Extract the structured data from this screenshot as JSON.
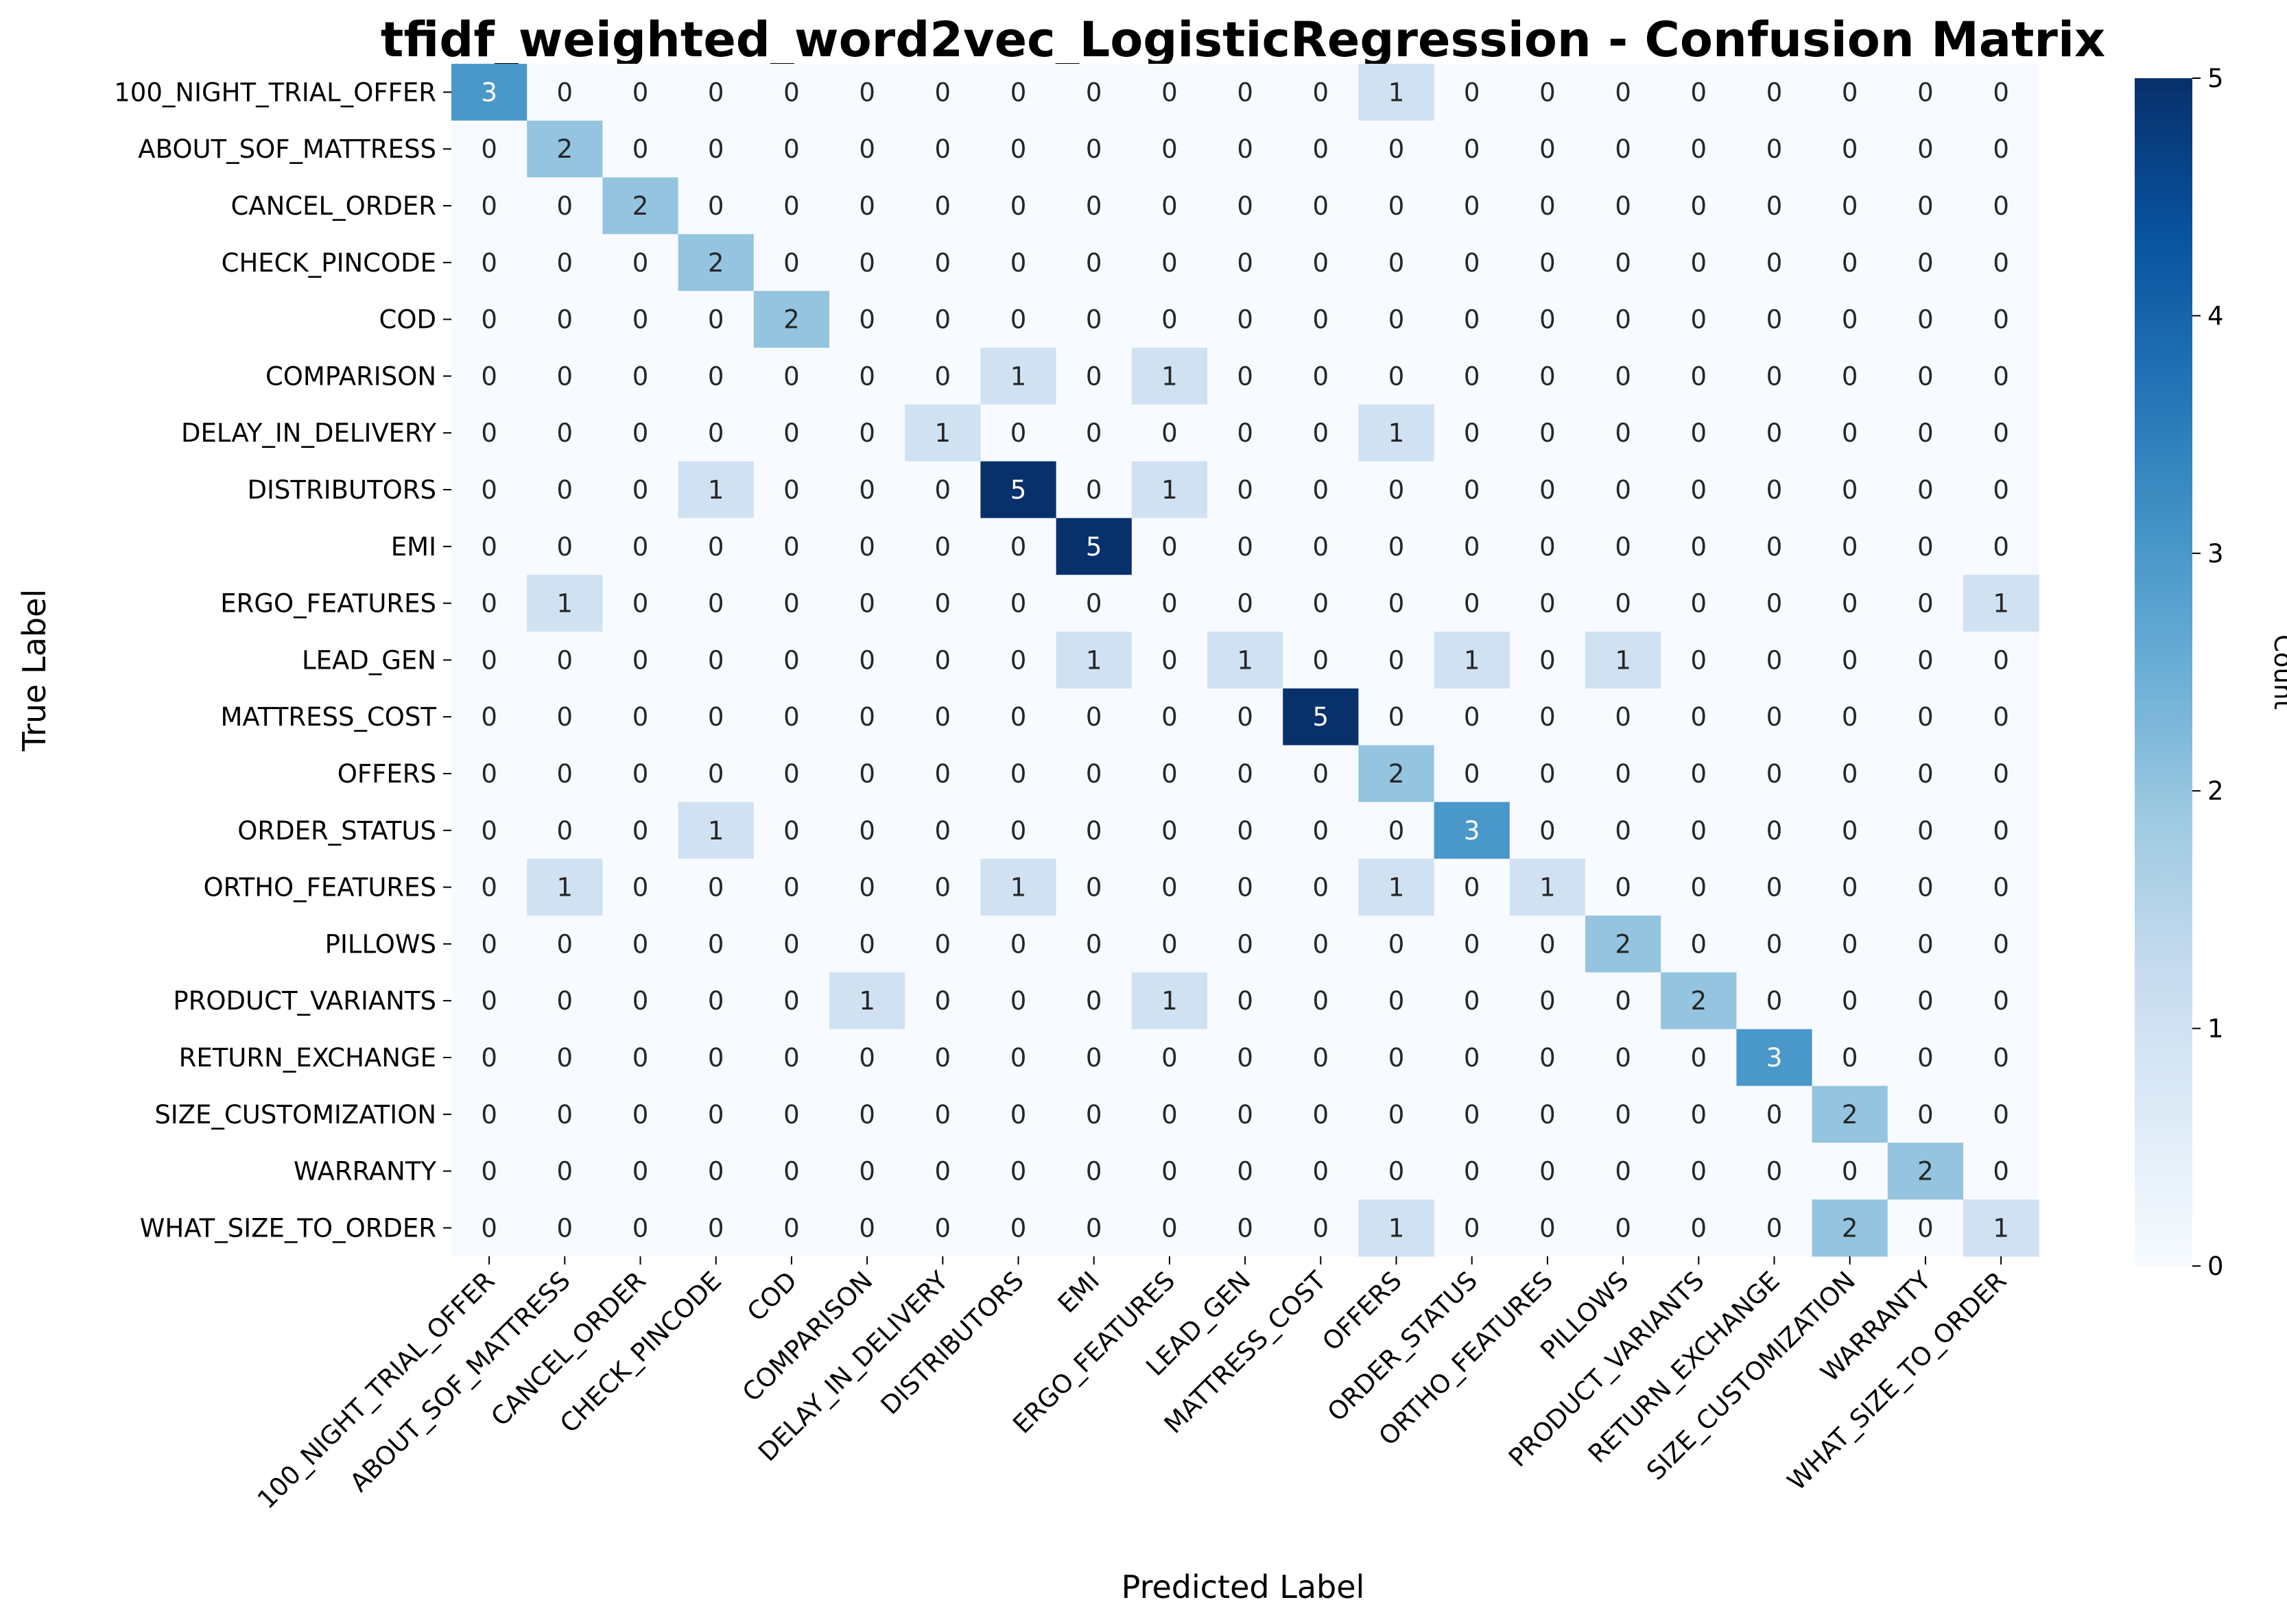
{
  "chart_data": {
    "type": "heatmap",
    "title": "tfidf_weighted_word2vec_LogisticRegression - Confusion Matrix",
    "xlabel": "Predicted Label",
    "ylabel": "True Label",
    "colorbar_label": "Count",
    "colormap": "Blues",
    "vmin": 0,
    "vmax": 5,
    "colorbar_ticks": [
      0,
      1,
      2,
      3,
      4,
      5
    ],
    "categories": [
      "100_NIGHT_TRIAL_OFFER",
      "ABOUT_SOF_MATTRESS",
      "CANCEL_ORDER",
      "CHECK_PINCODE",
      "COD",
      "COMPARISON",
      "DELAY_IN_DELIVERY",
      "DISTRIBUTORS",
      "EMI",
      "ERGO_FEATURES",
      "LEAD_GEN",
      "MATTRESS_COST",
      "OFFERS",
      "ORDER_STATUS",
      "ORTHO_FEATURES",
      "PILLOWS",
      "PRODUCT_VARIANTS",
      "RETURN_EXCHANGE",
      "SIZE_CUSTOMIZATION",
      "WARRANTY",
      "WHAT_SIZE_TO_ORDER"
    ],
    "matrix": [
      [
        3,
        0,
        0,
        0,
        0,
        0,
        0,
        0,
        0,
        0,
        0,
        0,
        1,
        0,
        0,
        0,
        0,
        0,
        0,
        0,
        0
      ],
      [
        0,
        2,
        0,
        0,
        0,
        0,
        0,
        0,
        0,
        0,
        0,
        0,
        0,
        0,
        0,
        0,
        0,
        0,
        0,
        0,
        0
      ],
      [
        0,
        0,
        2,
        0,
        0,
        0,
        0,
        0,
        0,
        0,
        0,
        0,
        0,
        0,
        0,
        0,
        0,
        0,
        0,
        0,
        0
      ],
      [
        0,
        0,
        0,
        2,
        0,
        0,
        0,
        0,
        0,
        0,
        0,
        0,
        0,
        0,
        0,
        0,
        0,
        0,
        0,
        0,
        0
      ],
      [
        0,
        0,
        0,
        0,
        2,
        0,
        0,
        0,
        0,
        0,
        0,
        0,
        0,
        0,
        0,
        0,
        0,
        0,
        0,
        0,
        0
      ],
      [
        0,
        0,
        0,
        0,
        0,
        0,
        0,
        1,
        0,
        1,
        0,
        0,
        0,
        0,
        0,
        0,
        0,
        0,
        0,
        0,
        0
      ],
      [
        0,
        0,
        0,
        0,
        0,
        0,
        1,
        0,
        0,
        0,
        0,
        0,
        1,
        0,
        0,
        0,
        0,
        0,
        0,
        0,
        0
      ],
      [
        0,
        0,
        0,
        1,
        0,
        0,
        0,
        5,
        0,
        1,
        0,
        0,
        0,
        0,
        0,
        0,
        0,
        0,
        0,
        0,
        0
      ],
      [
        0,
        0,
        0,
        0,
        0,
        0,
        0,
        0,
        5,
        0,
        0,
        0,
        0,
        0,
        0,
        0,
        0,
        0,
        0,
        0,
        0
      ],
      [
        0,
        1,
        0,
        0,
        0,
        0,
        0,
        0,
        0,
        0,
        0,
        0,
        0,
        0,
        0,
        0,
        0,
        0,
        0,
        0,
        1
      ],
      [
        0,
        0,
        0,
        0,
        0,
        0,
        0,
        0,
        1,
        0,
        1,
        0,
        0,
        1,
        0,
        1,
        0,
        0,
        0,
        0,
        0
      ],
      [
        0,
        0,
        0,
        0,
        0,
        0,
        0,
        0,
        0,
        0,
        0,
        5,
        0,
        0,
        0,
        0,
        0,
        0,
        0,
        0,
        0
      ],
      [
        0,
        0,
        0,
        0,
        0,
        0,
        0,
        0,
        0,
        0,
        0,
        0,
        2,
        0,
        0,
        0,
        0,
        0,
        0,
        0,
        0
      ],
      [
        0,
        0,
        0,
        1,
        0,
        0,
        0,
        0,
        0,
        0,
        0,
        0,
        0,
        3,
        0,
        0,
        0,
        0,
        0,
        0,
        0
      ],
      [
        0,
        1,
        0,
        0,
        0,
        0,
        0,
        1,
        0,
        0,
        0,
        0,
        1,
        0,
        1,
        0,
        0,
        0,
        0,
        0,
        0
      ],
      [
        0,
        0,
        0,
        0,
        0,
        0,
        0,
        0,
        0,
        0,
        0,
        0,
        0,
        0,
        0,
        2,
        0,
        0,
        0,
        0,
        0
      ],
      [
        0,
        0,
        0,
        0,
        0,
        1,
        0,
        0,
        0,
        1,
        0,
        0,
        0,
        0,
        0,
        0,
        2,
        0,
        0,
        0,
        0
      ],
      [
        0,
        0,
        0,
        0,
        0,
        0,
        0,
        0,
        0,
        0,
        0,
        0,
        0,
        0,
        0,
        0,
        0,
        3,
        0,
        0,
        0
      ],
      [
        0,
        0,
        0,
        0,
        0,
        0,
        0,
        0,
        0,
        0,
        0,
        0,
        0,
        0,
        0,
        0,
        0,
        0,
        2,
        0,
        0
      ],
      [
        0,
        0,
        0,
        0,
        0,
        0,
        0,
        0,
        0,
        0,
        0,
        0,
        0,
        0,
        0,
        0,
        0,
        0,
        0,
        2,
        0
      ],
      [
        0,
        0,
        0,
        0,
        0,
        0,
        0,
        0,
        0,
        0,
        0,
        0,
        1,
        0,
        0,
        0,
        0,
        0,
        2,
        0,
        1
      ]
    ]
  }
}
